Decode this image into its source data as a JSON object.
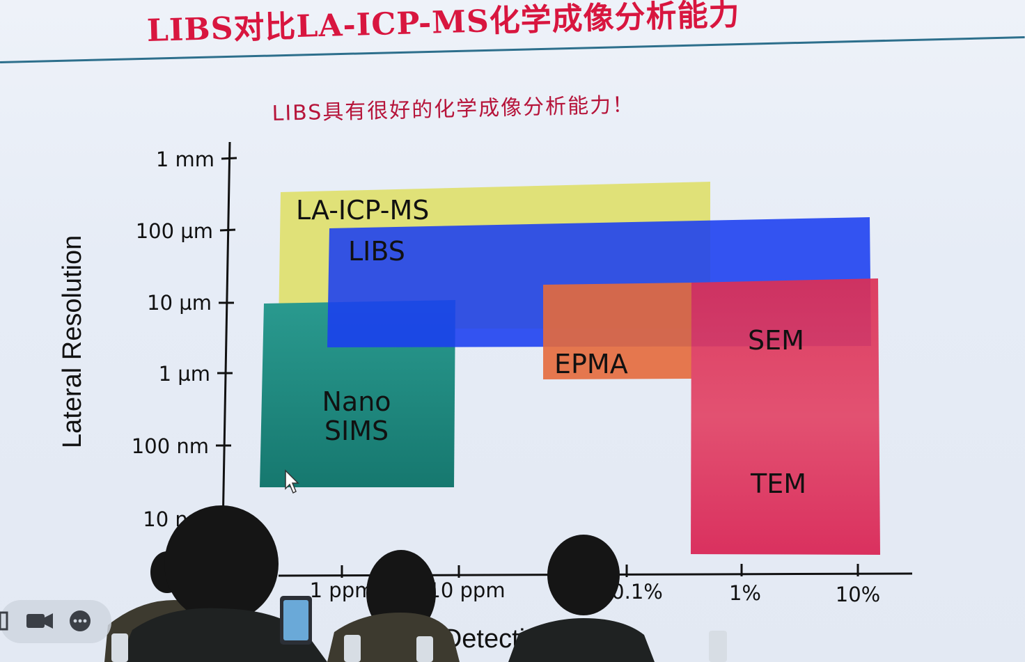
{
  "slide": {
    "title": "LIBS对比LA-ICP-MS化学成像分析能力",
    "subtitle": "LIBS具有很好的化学成像分析能力！"
  },
  "colors": {
    "title": "#d8163f",
    "la_icp_ms": "#dede6a",
    "libs": "#1f3fe6",
    "nano_sims": "#1f8f86",
    "epma": "#e0683a",
    "sem_tem": "#d8254f"
  },
  "chart_data": {
    "type": "region",
    "ylabel": "Lateral Resolution",
    "xlabel": "Detection range",
    "y_scale": "log",
    "y_ticks": [
      "1 mm",
      "100 µm",
      "10 µm",
      "1 µm",
      "100 nm",
      "10 nm"
    ],
    "x_ticks": [
      "1 ppm",
      "10 ppm",
      "0.1%",
      "1%",
      "10%"
    ],
    "regions": [
      {
        "name": "LA-ICP-MS",
        "x_range": [
          "1 ppm",
          "~1%"
        ],
        "y_range": [
          "~8 µm",
          "~500 µm"
        ]
      },
      {
        "name": "LIBS",
        "x_range": [
          "~3 ppm",
          "~10%"
        ],
        "y_range": [
          "~3 µm",
          "~150 µm"
        ]
      },
      {
        "name": "Nano SIMS",
        "x_range": [
          "1 ppm",
          "10 ppm"
        ],
        "y_range": [
          "~50 nm",
          "~10 µm"
        ]
      },
      {
        "name": "EPMA",
        "x_range": [
          "~0.05%",
          "~1%"
        ],
        "y_range": [
          "~1 µm",
          "~20 µm"
        ]
      },
      {
        "name": "SEM",
        "x_range": [
          "~1%",
          "~10%"
        ],
        "y_range": [
          "~1 µm",
          "~20 µm"
        ]
      },
      {
        "name": "TEM",
        "x_range": [
          "~1%",
          "~10%"
        ],
        "y_range": [
          "~5 nm",
          "~1 µm"
        ]
      }
    ]
  }
}
